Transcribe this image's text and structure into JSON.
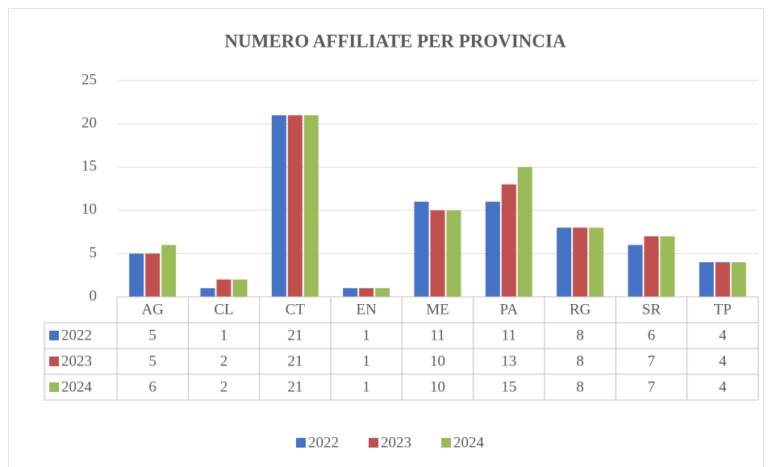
{
  "chart_data": {
    "type": "bar",
    "title": "NUMERO AFFILIATE PER PROVINCIA",
    "categories": [
      "AG",
      "CL",
      "CT",
      "EN",
      "ME",
      "PA",
      "RG",
      "SR",
      "TP"
    ],
    "series": [
      {
        "name": "2022",
        "color": "#4472c4",
        "values": [
          5,
          1,
          21,
          1,
          11,
          11,
          8,
          6,
          4
        ]
      },
      {
        "name": "2023",
        "color": "#c0504d",
        "values": [
          5,
          2,
          21,
          1,
          10,
          13,
          8,
          7,
          4
        ]
      },
      {
        "name": "2024",
        "color": "#9bbb59",
        "values": [
          6,
          2,
          21,
          1,
          10,
          15,
          8,
          7,
          4
        ]
      }
    ],
    "ylim": [
      0,
      25
    ],
    "yticks": [
      0,
      5,
      10,
      15,
      20,
      25
    ],
    "grid": true,
    "legend": "bottom",
    "data_table": true
  }
}
